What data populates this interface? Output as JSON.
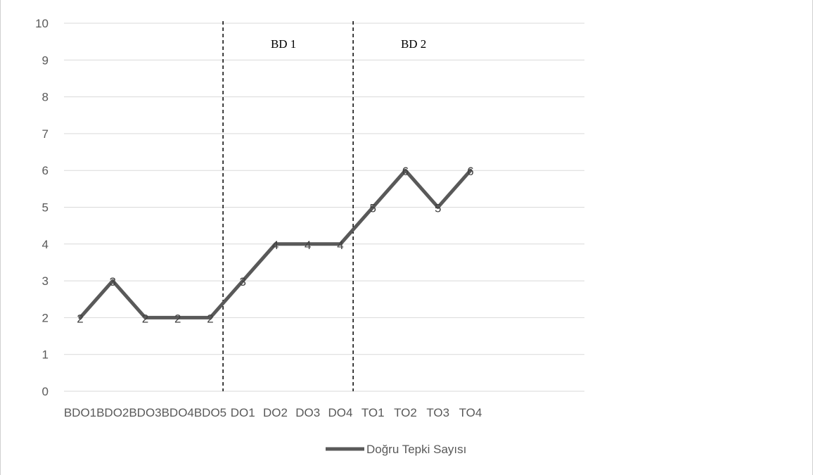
{
  "chart_data": {
    "type": "line",
    "categories": [
      "BDO1",
      "BDO2",
      "BDO3",
      "BDO4",
      "BDO5",
      "DO1",
      "DO2",
      "DO3",
      "DO4",
      "TO1",
      "TO2",
      "TO3",
      "TO4"
    ],
    "series": [
      {
        "name": "Doğru Tepki Sayısı",
        "values": [
          2,
          3,
          2,
          2,
          2,
          3,
          4,
          4,
          4,
          5,
          6,
          5,
          6
        ],
        "color": "#595959"
      }
    ],
    "ylim": [
      0,
      10
    ],
    "yticks": [
      0,
      1,
      2,
      3,
      4,
      5,
      6,
      7,
      8,
      9,
      10
    ],
    "grid": true,
    "legend_position": "bottom",
    "phase_lines_between": [
      [
        "BDO5",
        "DO1"
      ],
      [
        "DO4",
        "TO1"
      ]
    ],
    "phase_labels": [
      "BD 1",
      "BD 2"
    ],
    "data_labels": true
  }
}
